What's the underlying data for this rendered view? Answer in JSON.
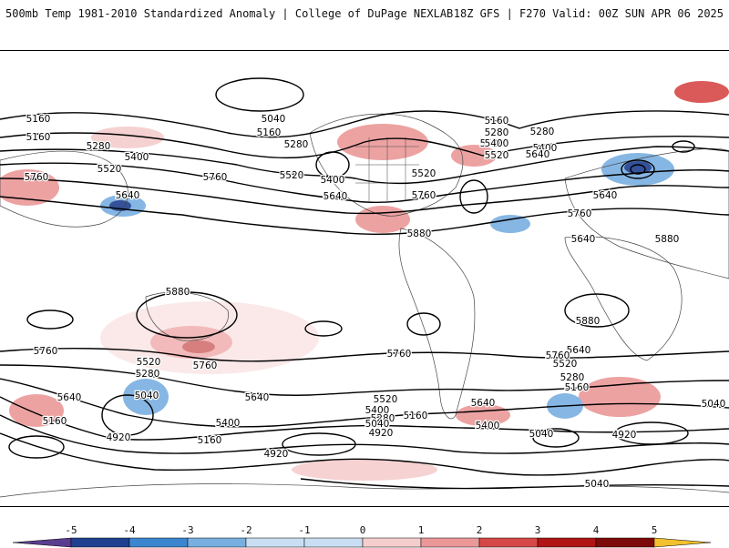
{
  "header": {
    "title": "500mb Temp 1981-2010 Standardized Anomaly | College of DuPage NEXLAB",
    "run_info": "18Z GFS | F270 Valid: 00Z SUN APR 06 2025"
  },
  "colors": {
    "neg5": "#5a3d8f",
    "neg4": "#1f3f8f",
    "neg3": "#3b86cf",
    "neg2": "#79afe0",
    "neg1": "#c9def2",
    "zero": "#ffffff",
    "pos1": "#f5cdcd",
    "pos2": "#ec9898",
    "pos3": "#d64848",
    "pos4": "#b01414",
    "pos5": "#7d0a0a",
    "pos6": "#f2c12e",
    "contour": "#000000",
    "coastline": "#444444"
  },
  "colorbar": {
    "labels": [
      "-5",
      "-4",
      "-3",
      "-2",
      "-1",
      "0",
      "1",
      "2",
      "3",
      "4",
      "5"
    ]
  },
  "contour_labels": [
    "5160",
    "5040",
    "5160",
    "5160",
    "5280",
    "5280",
    "5400",
    "5520",
    "5520",
    "5760",
    "5640",
    "5760",
    "5400",
    "5520",
    "5640",
    "5280",
    "5400",
    "5520",
    "5640",
    "5760",
    "5880",
    "5880",
    "5160",
    "5280",
    "5400",
    "5520",
    "5640",
    "5760",
    "5640",
    "5880",
    "5880",
    "5760",
    "5760",
    "5520",
    "5280",
    "5040",
    "5640",
    "5160",
    "4920",
    "5760",
    "5400",
    "5160",
    "4920",
    "5640",
    "5520",
    "5400",
    "5280",
    "5040",
    "5160",
    "5400",
    "4920",
    "5640",
    "5520",
    "5280",
    "5160",
    "5040",
    "4920",
    "5640",
    "5760",
    "5040",
    "5040"
  ]
}
